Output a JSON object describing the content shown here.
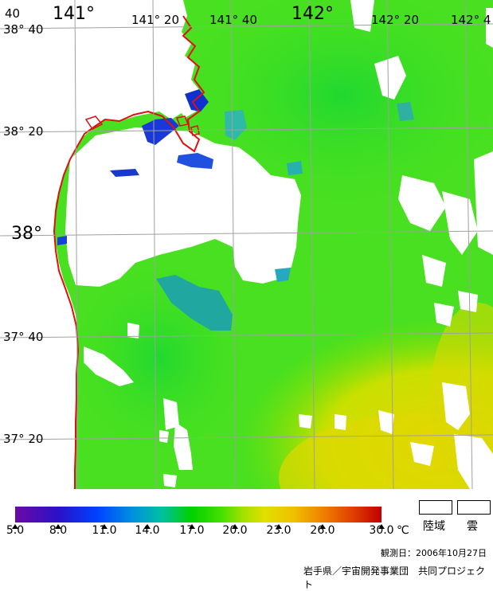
{
  "map": {
    "lon_labels": [
      {
        "text": "141°",
        "size": "big"
      },
      {
        "text": "141° 20",
        "size": "small"
      },
      {
        "text": "141° 40",
        "size": "small"
      },
      {
        "text": "142°",
        "size": "big"
      },
      {
        "text": "142° 20",
        "size": "small"
      },
      {
        "text": "142° 4",
        "size": "small"
      },
      {
        "text": "40",
        "size": "small"
      }
    ],
    "lat_labels": [
      {
        "text": "38° 40",
        "size": "small"
      },
      {
        "text": "38° 20",
        "size": "small"
      },
      {
        "text": "38°",
        "size": "big"
      },
      {
        "text": "37° 40",
        "size": "small"
      },
      {
        "text": "37° 20",
        "size": "small"
      }
    ],
    "colors": {
      "sea_green": "#40e020",
      "warm_yellow": "#e8d800",
      "cool_blue": "#1030d0",
      "cyan": "#20b090",
      "coast": "#e01010",
      "grid": "#a0a0a0",
      "land_cloud": "#ffffff"
    }
  },
  "colorbar": {
    "ticks": [
      "5.0",
      "8.0",
      "11.0",
      "14.0",
      "17.0",
      "20.0",
      "23.0",
      "26.0",
      "30.0"
    ],
    "unit": "℃"
  },
  "legend": {
    "land": "陸域",
    "cloud": "雲"
  },
  "observation_date": "観測日：2006年10月27日",
  "credit": "岩手県／宇宙開発事業団　共同プロジェクト"
}
